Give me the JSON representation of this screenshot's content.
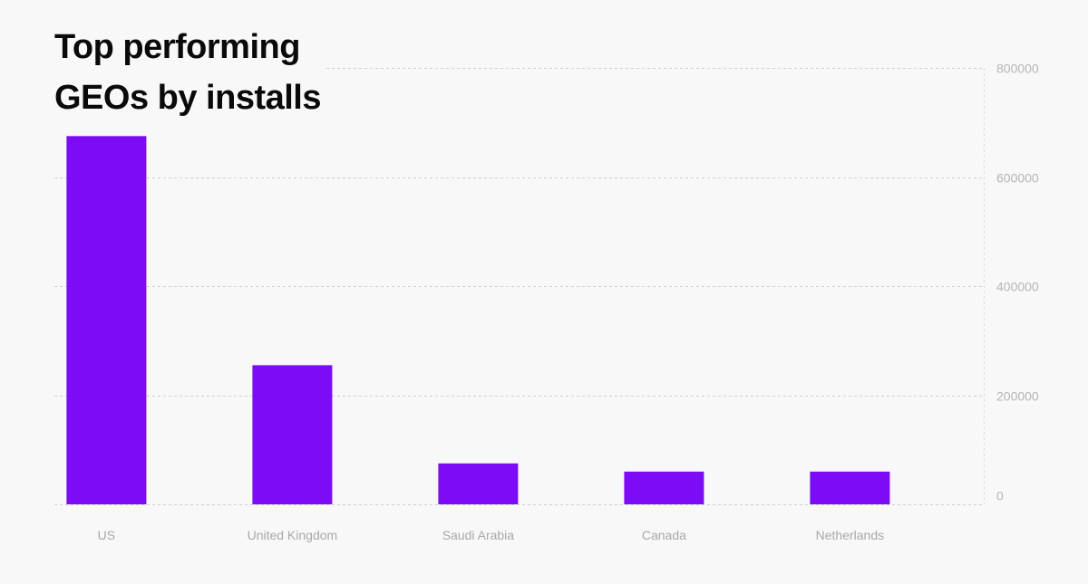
{
  "colors": {
    "bar": "#7b0cf5",
    "background": "#f8f8f8"
  },
  "chart_data": {
    "type": "bar",
    "title_lines": [
      "Top performing",
      "GEOs by installs"
    ],
    "categories": [
      "US",
      "United Kingdom",
      "Saudi Arabia",
      "Canada",
      "Netherlands"
    ],
    "values": [
      675000,
      255000,
      75000,
      60000,
      60000
    ],
    "ylim": [
      0,
      800000
    ],
    "yticks": [
      0,
      200000,
      400000,
      600000,
      800000
    ],
    "ytick_labels": [
      "0",
      "200000",
      "400000",
      "600000",
      "800000"
    ],
    "y_axis_side": "right",
    "grid": true,
    "legend": "none"
  }
}
